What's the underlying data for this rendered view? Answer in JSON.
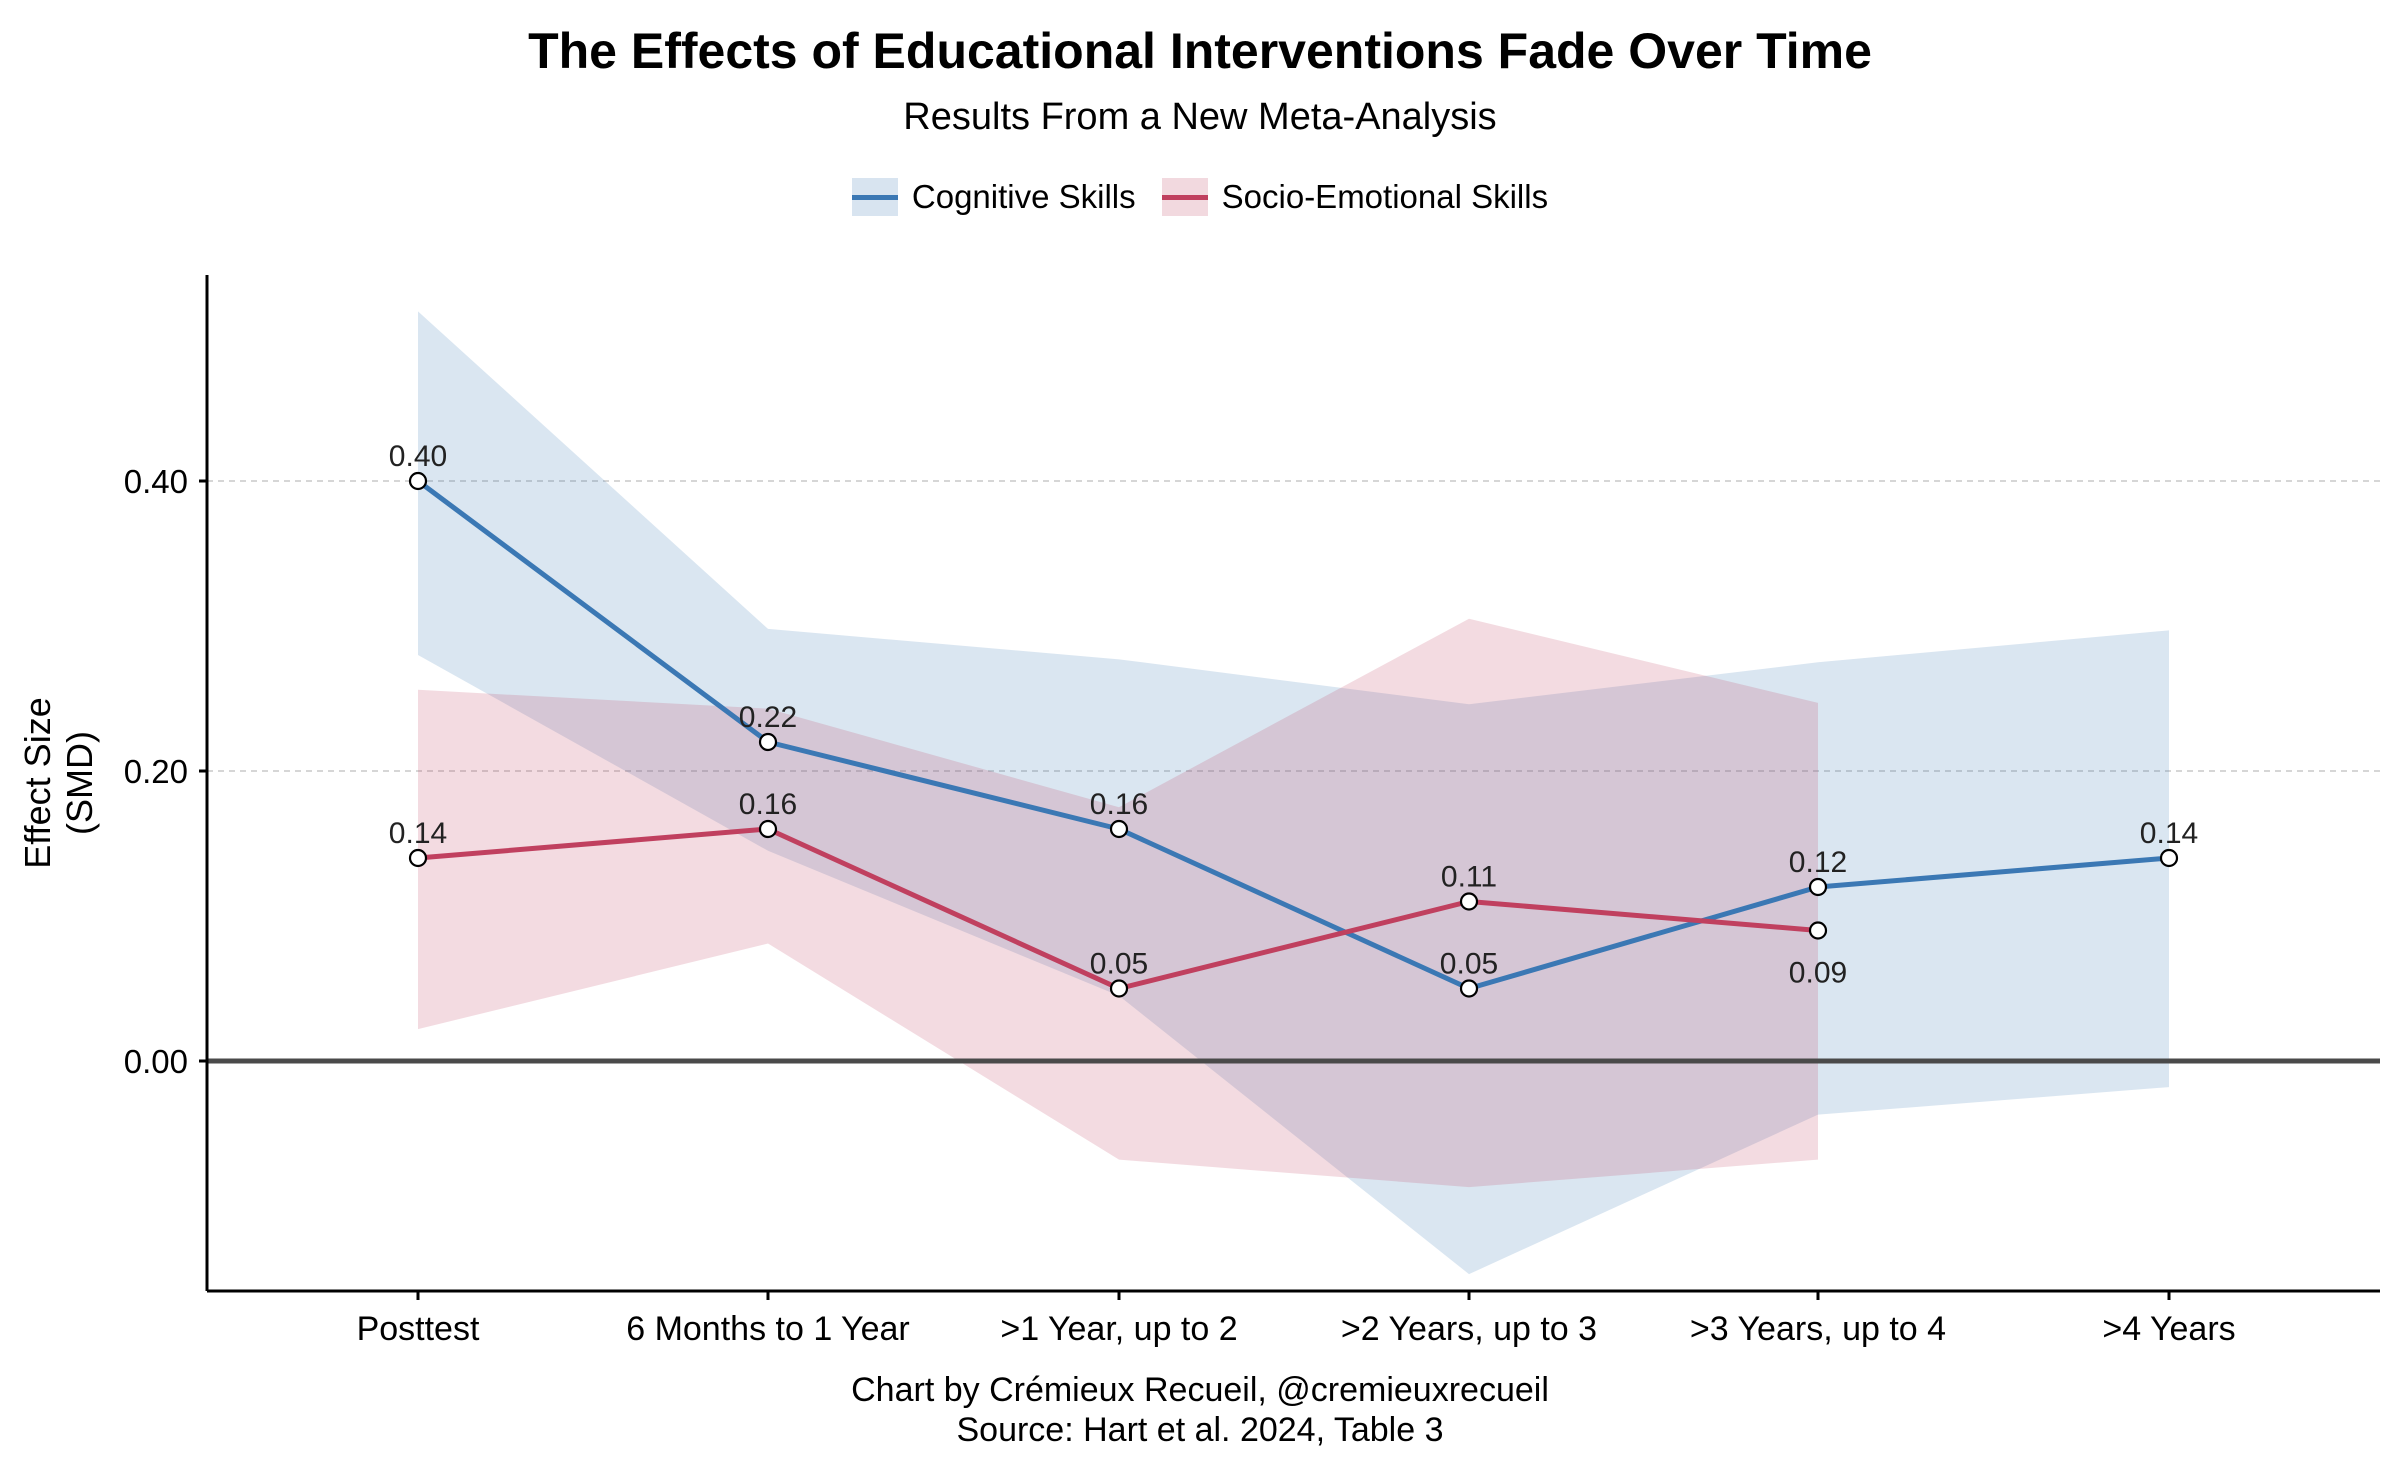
{
  "chart_data": {
    "type": "line",
    "title": "The Effects of Educational Interventions Fade Over Time",
    "subtitle": "Results From a New Meta-Analysis",
    "xlabel": "",
    "ylabel_lines": [
      "Effect Size",
      "(SMD)"
    ],
    "ylim": [
      -0.16,
      0.54
    ],
    "yticks": [
      0.0,
      0.2,
      0.4
    ],
    "ytick_labels": [
      "0.00",
      "0.20",
      "0.40"
    ],
    "grid": "horizontal dashed",
    "legend_placement": "top-center",
    "categories": [
      "Posttest",
      "6 Months to 1 Year",
      ">1 Year, up to 2",
      ">2 Years, up to 3",
      ">3 Years, up to 4",
      ">4 Years"
    ],
    "series": [
      {
        "name": "Cognitive Skills",
        "color": "#3b78b4",
        "band_color": "#3b78b4",
        "values": [
          0.4,
          0.22,
          0.16,
          0.05,
          0.12,
          0.14
        ],
        "labels": [
          "0.40",
          "0.22",
          "0.16",
          "0.05",
          "0.12",
          "0.14"
        ],
        "label_position": [
          "above",
          "above",
          "above",
          "above",
          "above",
          "above"
        ],
        "ci_lower": [
          0.28,
          0.145,
          0.045,
          -0.147,
          -0.037,
          -0.018
        ],
        "ci_upper": [
          0.517,
          0.298,
          0.277,
          0.246,
          0.275,
          0.297
        ]
      },
      {
        "name": "Socio-Emotional Skills",
        "color": "#c0405f",
        "band_color": "#c0405f",
        "values": [
          0.14,
          0.16,
          0.05,
          0.11,
          0.09,
          null
        ],
        "labels": [
          "0.14",
          "0.16",
          "0.05",
          "0.11",
          "0.09",
          null
        ],
        "label_position": [
          "above",
          "above",
          "above",
          "above",
          "below",
          null
        ],
        "ci_lower": [
          0.022,
          0.081,
          -0.068,
          -0.087,
          -0.068,
          null
        ],
        "ci_upper": [
          0.256,
          0.243,
          0.175,
          0.305,
          0.247,
          null
        ]
      }
    ]
  },
  "footer": {
    "credit": "Chart by Crémieux Recueil, @cremieuxrecueil",
    "source": "Source: Hart et al. 2024, Table 3"
  }
}
